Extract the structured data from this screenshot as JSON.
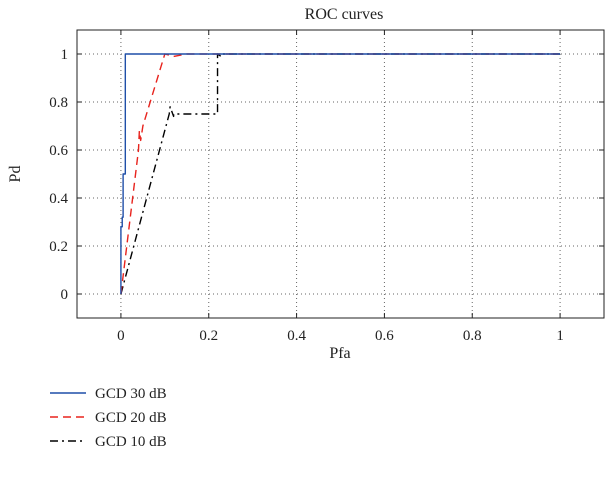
{
  "chart_data": {
    "type": "line",
    "title": "ROC curves",
    "xlabel": "Pfa",
    "ylabel": "Pd",
    "xlim": [
      -0.1,
      1.1
    ],
    "ylim": [
      -0.1,
      1.1
    ],
    "xticks": [
      0,
      0.2,
      0.4,
      0.6,
      0.8,
      1
    ],
    "xtick_labels": [
      "0",
      "0.2",
      "0.4",
      "0.6",
      "0.8",
      "1"
    ],
    "yticks": [
      0,
      0.2,
      0.4,
      0.6,
      0.8,
      1
    ],
    "ytick_labels": [
      "0",
      "0.2",
      "0.4",
      "0.6",
      "0.8",
      "1"
    ],
    "grid": true,
    "legend_position": "below",
    "series": [
      {
        "name": "GCD 30 dB",
        "color": "#1f4fa8",
        "style": "solid",
        "x": [
          0,
          0,
          0.003,
          0.003,
          0.005,
          0.005,
          0.01,
          0.01,
          1.0
        ],
        "y": [
          0,
          0.28,
          0.28,
          0.32,
          0.32,
          0.5,
          0.5,
          1.0,
          1.0
        ]
      },
      {
        "name": "GCD 20 dB",
        "color": "#e8231d",
        "style": "dashed",
        "x": [
          0,
          0.02,
          0.04,
          0.042,
          0.045,
          0.05,
          0.1,
          0.12,
          0.15,
          1.0
        ],
        "y": [
          0,
          0.3,
          0.6,
          0.68,
          0.64,
          0.7,
          1.0,
          0.99,
          1.0,
          1.0
        ]
      },
      {
        "name": "GCD 10 dB",
        "color": "#000000",
        "style": "dashdot",
        "x": [
          0,
          0.11,
          0.112,
          0.12,
          0.12,
          0.22,
          0.22,
          0.228,
          0.23,
          1.0
        ],
        "y": [
          0,
          0.75,
          0.78,
          0.74,
          0.75,
          0.75,
          1.0,
          0.99,
          1.0,
          1.0
        ]
      }
    ]
  }
}
